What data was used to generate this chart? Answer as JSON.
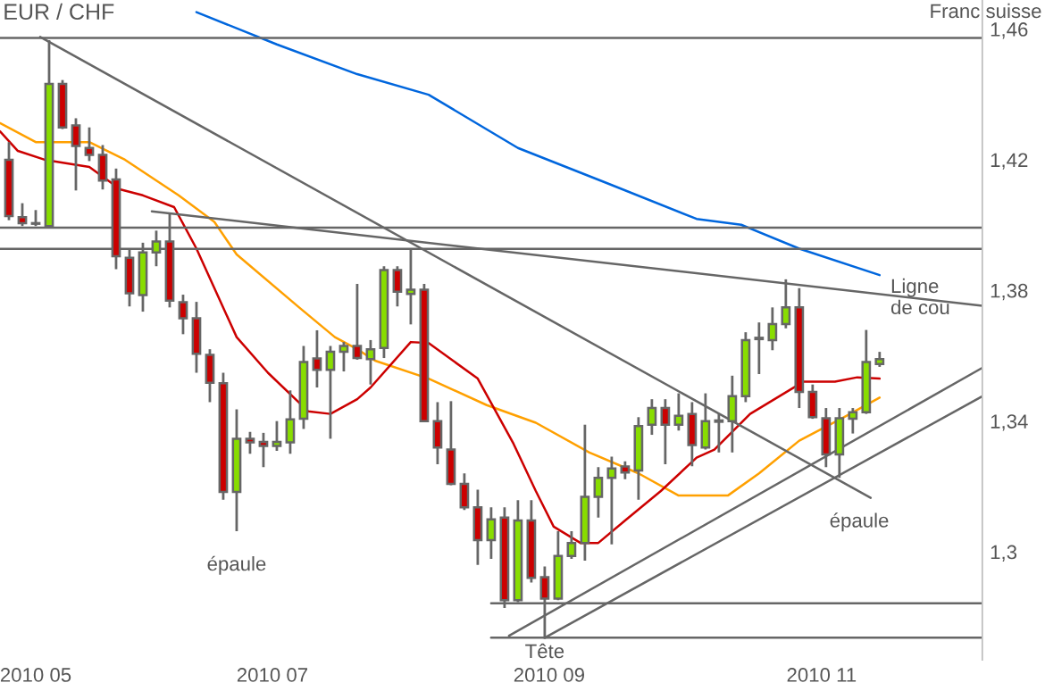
{
  "chart_data": {
    "type": "candlestick",
    "title": "EUR / CHF",
    "ylabel": "Franc suisse",
    "x": [
      "2010-04-26",
      "2010-04-29",
      "2010-05-02",
      "2010-05-05",
      "2010-05-08",
      "2010-05-11",
      "2010-05-14",
      "2010-05-17",
      "2010-05-20",
      "2010-05-23",
      "2010-05-26",
      "2010-05-29",
      "2010-06-01",
      "2010-06-04",
      "2010-06-07",
      "2010-06-10",
      "2010-06-13",
      "2010-06-16",
      "2010-06-19",
      "2010-06-22",
      "2010-06-25",
      "2010-06-28",
      "2010-07-01",
      "2010-07-04",
      "2010-07-07",
      "2010-07-10",
      "2010-07-13",
      "2010-07-16",
      "2010-07-19",
      "2010-07-22",
      "2010-07-25",
      "2010-07-28",
      "2010-07-31",
      "2010-08-03",
      "2010-08-06",
      "2010-08-09",
      "2010-08-12",
      "2010-08-15",
      "2010-08-18",
      "2010-08-21",
      "2010-08-24",
      "2010-08-27",
      "2010-08-30",
      "2010-09-02",
      "2010-09-05",
      "2010-09-08",
      "2010-09-11",
      "2010-09-14",
      "2010-09-17",
      "2010-09-20",
      "2010-09-23",
      "2010-09-26",
      "2010-09-29",
      "2010-10-02",
      "2010-10-05",
      "2010-10-08",
      "2010-10-11",
      "2010-10-14",
      "2010-10-17",
      "2010-10-20",
      "2010-10-23",
      "2010-10-26",
      "2010-10-29",
      "2010-11-01",
      "2010-11-04",
      "2010-11-07"
    ],
    "ohlc": [
      [
        1.42,
        1.4254,
        1.4015,
        1.4028
      ],
      [
        1.4024,
        1.4067,
        1.3997,
        1.4006
      ],
      [
        1.4006,
        1.4046,
        1.3997,
        1.4004
      ],
      [
        1.3997,
        1.4566,
        1.3997,
        1.4432
      ],
      [
        1.4432,
        1.4444,
        1.4294,
        1.4299
      ],
      [
        1.4305,
        1.4327,
        1.4106,
        1.4242
      ],
      [
        1.4236,
        1.4299,
        1.4196,
        1.4215
      ],
      [
        1.4215,
        1.4245,
        1.4109,
        1.4136
      ],
      [
        1.414,
        1.4173,
        1.3865,
        1.3905
      ],
      [
        1.39,
        1.3928,
        1.3751,
        1.3791
      ],
      [
        1.3786,
        1.3946,
        1.3735,
        1.3916
      ],
      [
        1.3916,
        1.3983,
        1.3874,
        1.395
      ],
      [
        1.395,
        1.4037,
        1.3748,
        1.3769
      ],
      [
        1.3764,
        1.3787,
        1.3666,
        1.3715
      ],
      [
        1.3715,
        1.3765,
        1.3548,
        1.3606
      ],
      [
        1.3603,
        1.362,
        1.3458,
        1.3517
      ],
      [
        1.3516,
        1.3548,
        1.3159,
        1.3183
      ],
      [
        1.3183,
        1.3436,
        1.3063,
        1.3346
      ],
      [
        1.3346,
        1.3367,
        1.33,
        1.3335
      ],
      [
        1.3336,
        1.3364,
        1.3259,
        1.3324
      ],
      [
        1.3324,
        1.34,
        1.3309,
        1.3336
      ],
      [
        1.3335,
        1.3494,
        1.33,
        1.3405
      ],
      [
        1.3407,
        1.363,
        1.3376,
        1.3581
      ],
      [
        1.3592,
        1.3678,
        1.3503,
        1.3557
      ],
      [
        1.3557,
        1.363,
        1.3346,
        1.3612
      ],
      [
        1.3612,
        1.3642,
        1.3552,
        1.363
      ],
      [
        1.363,
        1.382,
        1.3588,
        1.3593
      ],
      [
        1.359,
        1.3648,
        1.3512,
        1.362
      ],
      [
        1.3624,
        1.3874,
        1.3593,
        1.3862
      ],
      [
        1.3862,
        1.3874,
        1.3751,
        1.3796
      ],
      [
        1.3789,
        1.3928,
        1.3696,
        1.3802
      ],
      [
        1.3802,
        1.382,
        1.34,
        1.34
      ],
      [
        1.34,
        1.3458,
        1.3268,
        1.3319
      ],
      [
        1.3313,
        1.3461,
        1.3204,
        1.3208
      ],
      [
        1.3208,
        1.324,
        1.3128,
        1.3136
      ],
      [
        1.3136,
        1.319,
        1.296,
        1.3036
      ],
      [
        1.3036,
        1.3136,
        1.2978,
        1.3099
      ],
      [
        1.3105,
        1.3136,
        1.2828,
        1.2852
      ],
      [
        1.2852,
        1.3158,
        1.2846,
        1.3096
      ],
      [
        1.3096,
        1.3158,
        1.2906,
        1.292
      ],
      [
        1.2922,
        1.2955,
        1.2734,
        1.2857
      ],
      [
        1.2857,
        1.3063,
        1.2852,
        1.2987
      ],
      [
        1.2987,
        1.3063,
        1.2978,
        1.3027
      ],
      [
        1.3027,
        1.3389,
        1.2973,
        1.3168
      ],
      [
        1.3168,
        1.3259,
        1.3105,
        1.3226
      ],
      [
        1.3226,
        1.3291,
        1.3023,
        1.3255
      ],
      [
        1.3261,
        1.3277,
        1.3222,
        1.3243
      ],
      [
        1.3249,
        1.3412,
        1.3159,
        1.3385
      ],
      [
        1.3389,
        1.3467,
        1.3358,
        1.344
      ],
      [
        1.344,
        1.3467,
        1.3268,
        1.3389
      ],
      [
        1.3389,
        1.3485,
        1.3371,
        1.3416
      ],
      [
        1.3422,
        1.3458,
        1.3262,
        1.3327
      ],
      [
        1.3319,
        1.3485,
        1.3313,
        1.34
      ],
      [
        1.3398,
        1.3422,
        1.3304,
        1.3402
      ],
      [
        1.34,
        1.3539,
        1.3304,
        1.3476
      ],
      [
        1.3476,
        1.3672,
        1.3458,
        1.3648
      ],
      [
        1.3651,
        1.3702,
        1.3544,
        1.3655
      ],
      [
        1.3648,
        1.3748,
        1.3617,
        1.3697
      ],
      [
        1.3697,
        1.3834,
        1.3684,
        1.3748
      ],
      [
        1.3748,
        1.3807,
        1.344,
        1.3489
      ],
      [
        1.3489,
        1.3512,
        1.3407,
        1.3412
      ],
      [
        1.3409,
        1.344,
        1.3259,
        1.3298
      ],
      [
        1.3298,
        1.344,
        1.3226,
        1.3409
      ],
      [
        1.3407,
        1.344,
        1.3362,
        1.3427
      ],
      [
        1.3427,
        1.3679,
        1.3422,
        1.3581
      ],
      [
        1.3575,
        1.3612,
        1.3566,
        1.359
      ]
    ],
    "series": [
      {
        "type": "line",
        "color": "#0066dd",
        "x": [
          "2010-06-07",
          "2010-06-25",
          "2010-07-13",
          "2010-07-29",
          "2010-08-18",
          "2010-09-07",
          "2010-09-27",
          "2010-10-07",
          "2010-10-20",
          "2010-11-07"
        ],
        "values": [
          1.4652,
          1.4553,
          1.4462,
          1.4399,
          1.4236,
          1.4128,
          1.4019,
          1.4001,
          1.3928,
          1.3847
        ]
      },
      {
        "type": "line",
        "color": "#ffa000",
        "x": [
          "2010-04-24",
          "2010-05-02",
          "2010-05-14",
          "2010-05-22",
          "2010-06-03",
          "2010-06-11",
          "2010-06-16",
          "2010-06-30",
          "2010-07-08",
          "2010-07-13",
          "2010-07-17",
          "2010-07-29",
          "2010-08-11",
          "2010-08-22",
          "2010-09-03",
          "2010-09-14",
          "2010-09-23",
          "2010-10-04",
          "2010-10-11",
          "2010-10-20",
          "2010-10-30",
          "2010-11-07"
        ],
        "values": [
          1.4312,
          1.4254,
          1.4254,
          1.42,
          1.4091,
          1.401,
          1.391,
          1.3748,
          1.3657,
          1.362,
          1.3585,
          1.353,
          1.3449,
          1.3395,
          1.3304,
          1.324,
          1.3172,
          1.3172,
          1.324,
          1.334,
          1.3412,
          1.3472
        ]
      },
      {
        "type": "line",
        "color": "#cc0000",
        "x": [
          "2010-04-24",
          "2010-04-28",
          "2010-05-04",
          "2010-05-14",
          "2010-05-21",
          "2010-05-26",
          "2010-06-02",
          "2010-06-07",
          "2010-06-16",
          "2010-06-23",
          "2010-07-02",
          "2010-07-07",
          "2010-07-13",
          "2010-07-16",
          "2010-07-25",
          "2010-07-29",
          "2010-08-09",
          "2010-08-17",
          "2010-08-22",
          "2010-08-26",
          "2010-09-01",
          "2010-09-05",
          "2010-09-11",
          "2010-09-19",
          "2010-09-27",
          "2010-10-01",
          "2010-10-09",
          "2010-10-21",
          "2010-10-28",
          "2010-11-02",
          "2010-11-07"
        ],
        "values": [
          1.4287,
          1.4227,
          1.42,
          1.4178,
          1.4109,
          1.4091,
          1.4055,
          1.3928,
          1.3657,
          1.3548,
          1.343,
          1.3422,
          1.3467,
          1.3503,
          1.3642,
          1.3639,
          1.353,
          1.3331,
          1.3186,
          1.3077,
          1.3027,
          1.3027,
          1.3096,
          1.3186,
          1.3288,
          1.3313,
          1.3422,
          1.3521,
          1.3521,
          1.3534,
          1.353
        ]
      },
      {
        "type": "line",
        "color": "#666666",
        "x": [
          "2010-04-24",
          "2010-11-30"
        ],
        "values": [
          1.4573,
          1.4573
        ]
      },
      {
        "type": "line",
        "color": "#666666",
        "x": [
          "2010-04-24",
          "2010-11-30"
        ],
        "values": [
          1.3992,
          1.3992
        ]
      },
      {
        "type": "line",
        "color": "#666666",
        "x": [
          "2010-04-24",
          "2010-11-30"
        ],
        "values": [
          1.3927,
          1.3927
        ]
      },
      {
        "type": "line",
        "color": "#666666",
        "x": [
          "2010-08-12",
          "2010-11-30"
        ],
        "values": [
          1.2842,
          1.2842
        ]
      },
      {
        "type": "line",
        "color": "#666666",
        "x": [
          "2010-08-12",
          "2010-11-30"
        ],
        "values": [
          1.2737,
          1.2737
        ]
      },
      {
        "type": "line",
        "color": "#666666",
        "x": [
          "2010-05-03",
          "2010-11-05"
        ],
        "values": [
          1.4576,
          1.3165
        ]
      },
      {
        "type": "line",
        "color": "#666666",
        "x": [
          "2010-05-28",
          "2010-11-30"
        ],
        "values": [
          1.4042,
          1.3753
        ]
      },
      {
        "type": "line",
        "color": "#666666",
        "x": [
          "2010-08-24",
          "2010-11-30"
        ],
        "values": [
          1.2737,
          1.3476
        ]
      },
      {
        "type": "line",
        "color": "#666666",
        "x": [
          "2010-08-16",
          "2010-11-30"
        ],
        "values": [
          1.2743,
          1.3563
        ]
      }
    ],
    "xlim": [
      "2010-04-24",
      "2010-11-30"
    ],
    "ylim": [
      1.2669,
      1.4689
    ],
    "xticks": [
      {
        "value": "2010-05-02",
        "label": "2010 05"
      },
      {
        "value": "2010-06-24",
        "label": "2010 07"
      },
      {
        "value": "2010-08-25",
        "label": "2010 09"
      },
      {
        "value": "2010-10-25",
        "label": "2010 11"
      }
    ],
    "yticks": [
      {
        "value": 1.3,
        "label": "1,3"
      },
      {
        "value": 1.34,
        "label": "1,34"
      },
      {
        "value": 1.38,
        "label": "1,38"
      },
      {
        "value": 1.42,
        "label": "1,42"
      },
      {
        "value": 1.46,
        "label": "1,46"
      }
    ],
    "annotations": [
      {
        "text": "épaule",
        "x": "2010-06-16",
        "y": 1.3063
      },
      {
        "text": "Tête",
        "x": "2010-08-24",
        "y": 1.2734
      },
      {
        "text": "épaule",
        "x": "2010-10-29",
        "y": 1.3226
      },
      {
        "text": "Ligne\nde cou",
        "x": "2010-11-30",
        "y": 1.3753
      }
    ],
    "grid": false
  }
}
